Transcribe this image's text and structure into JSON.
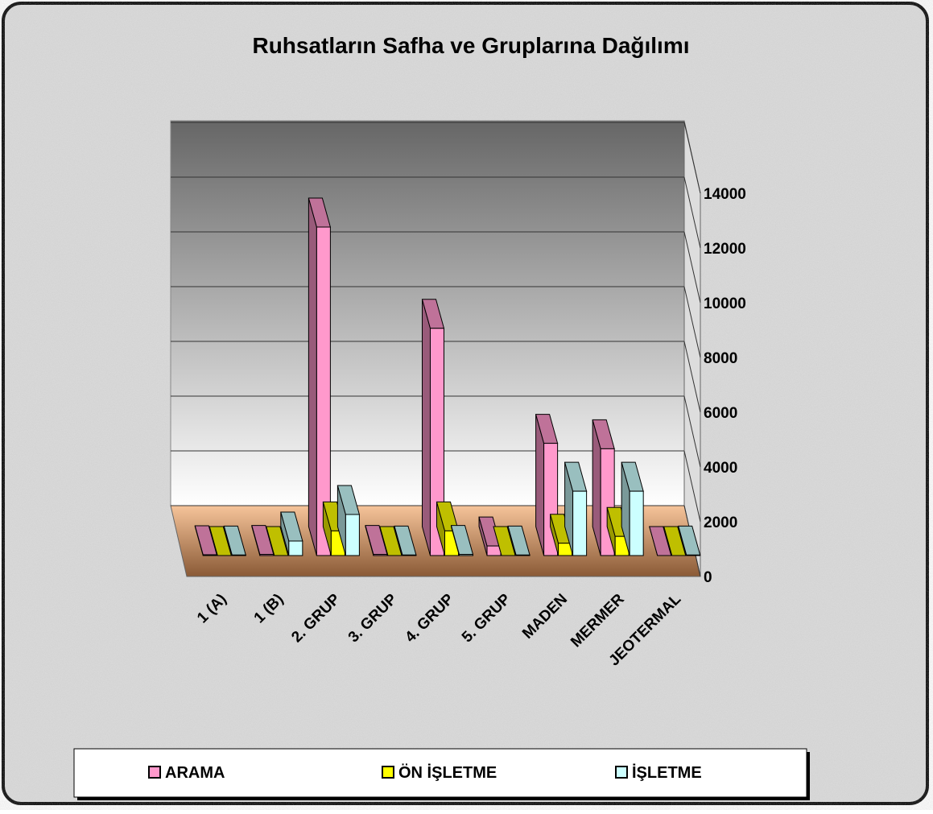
{
  "chart_data": {
    "type": "bar3d",
    "title": "Ruhsatların Safha ve Gruplarına Dağılımı",
    "categories": [
      "1 (A)",
      "1 (B)",
      "2. GRUP",
      "3. GRUP",
      "4. GRUP",
      "5. GRUP",
      "MADEN",
      "MERMER",
      "JEOTERMAL"
    ],
    "series": [
      {
        "name": "ARAMA",
        "color": "#ff99cc",
        "values": [
          30,
          40,
          12000,
          40,
          8300,
          350,
          4100,
          3900,
          0
        ]
      },
      {
        "name": "ÖN İŞLETME",
        "color": "#ffff00",
        "values": [
          0,
          0,
          900,
          0,
          900,
          0,
          450,
          700,
          0
        ]
      },
      {
        "name": "İŞLETME",
        "color": "#ccffff",
        "values": [
          20,
          530,
          1500,
          20,
          40,
          20,
          2350,
          2350,
          20
        ]
      }
    ],
    "ylim": [
      0,
      14000
    ],
    "yticks": [
      0,
      2000,
      4000,
      6000,
      8000,
      10000,
      12000,
      14000
    ],
    "grid": true
  }
}
